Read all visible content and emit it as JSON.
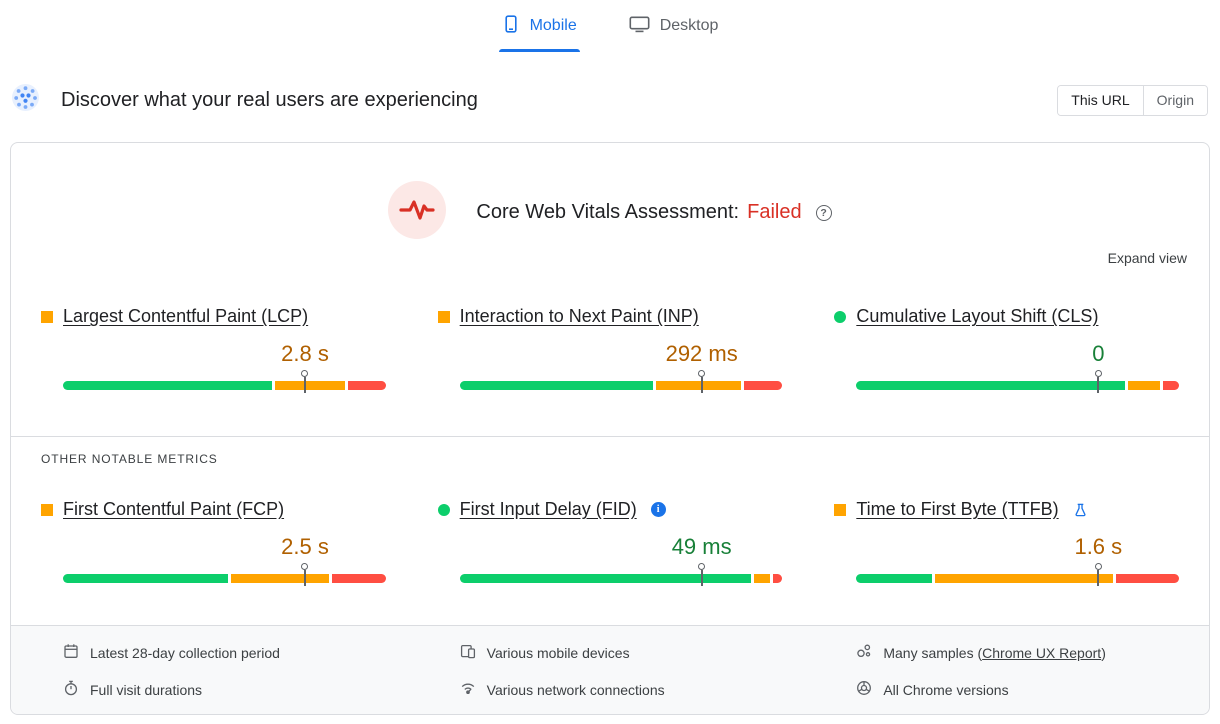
{
  "tabs": {
    "mobile": "Mobile",
    "desktop": "Desktop"
  },
  "header": {
    "title": "Discover what your real users are experiencing",
    "toggle": {
      "this_url": "This URL",
      "origin": "Origin"
    }
  },
  "assessment": {
    "label": "Core Web Vitals Assessment:",
    "result": "Failed",
    "expand_label": "Expand view"
  },
  "icons": {
    "help_glyph": "?",
    "info_glyph": "i"
  },
  "colors": {
    "good": "#0cce6b",
    "needs_improvement": "#ffa400",
    "poor": "#ff4e42",
    "value_orange": "#b06000",
    "value_green": "#188038",
    "accent_blue": "#1a73e8",
    "failed_red": "#d93025"
  },
  "core_metrics": [
    {
      "name": "Largest Contentful Paint (LCP)",
      "value": "2.8 s",
      "status": "ni",
      "marker_pct": 75,
      "distribution": {
        "good": 66,
        "needs_improvement": 22,
        "poor": 12
      }
    },
    {
      "name": "Interaction to Next Paint (INP)",
      "value": "292 ms",
      "status": "ni",
      "marker_pct": 75,
      "distribution": {
        "good": 61,
        "needs_improvement": 27,
        "poor": 12
      }
    },
    {
      "name": "Cumulative Layout Shift (CLS)",
      "value": "0",
      "status": "good",
      "marker_pct": 75,
      "distribution": {
        "good": 85,
        "needs_improvement": 10,
        "poor": 5
      }
    }
  ],
  "other_metrics_label": "OTHER NOTABLE METRICS",
  "other_metrics": [
    {
      "name": "First Contentful Paint (FCP)",
      "value": "2.5 s",
      "status": "ni",
      "marker_pct": 75,
      "distribution": {
        "good": 52,
        "needs_improvement": 31,
        "poor": 17
      }
    },
    {
      "name": "First Input Delay (FID)",
      "value": "49 ms",
      "status": "good",
      "marker_pct": 75,
      "distribution": {
        "good": 92,
        "needs_improvement": 5,
        "poor": 3
      }
    },
    {
      "name": "Time to First Byte (TTFB)",
      "value": "1.6 s",
      "status": "ni",
      "marker_pct": 75,
      "distribution": {
        "good": 24,
        "needs_improvement": 56,
        "poor": 20
      }
    }
  ],
  "footer": {
    "collection_period": "Latest 28-day collection period",
    "devices": "Various mobile devices",
    "samples_prefix": "Many samples (",
    "samples_link": "Chrome UX Report",
    "samples_suffix": ")",
    "durations": "Full visit durations",
    "network": "Various network connections",
    "chrome_versions": "All Chrome versions"
  }
}
